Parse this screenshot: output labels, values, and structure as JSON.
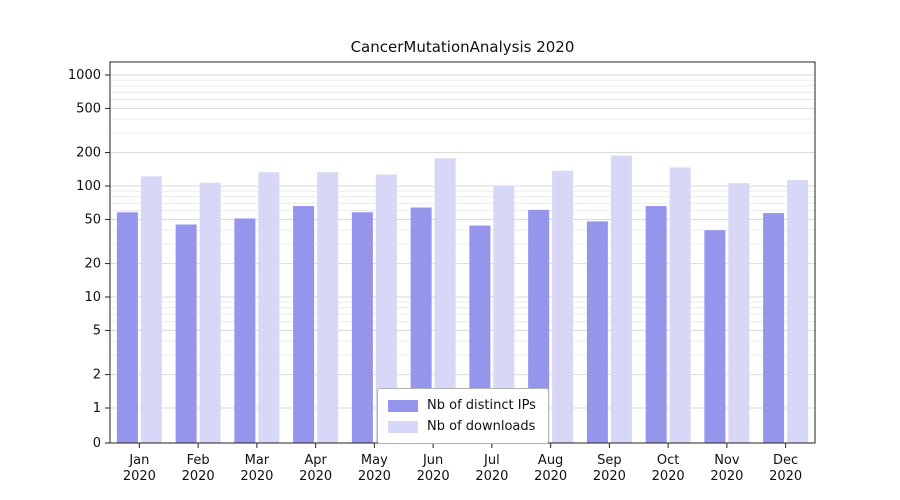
{
  "chart_data": {
    "type": "bar",
    "title": "CancerMutationAnalysis 2020",
    "scale": "symlog",
    "grid": true,
    "legend_position": "lower center",
    "ylim": [
      0,
      1300
    ],
    "yticks": [
      0,
      1,
      2,
      5,
      10,
      20,
      50,
      100,
      200,
      500,
      1000
    ],
    "categories": [
      "Jan\n2020",
      "Feb\n2020",
      "Mar\n2020",
      "Apr\n2020",
      "May\n2020",
      "Jun\n2020",
      "Jul\n2020",
      "Aug\n2020",
      "Sep\n2020",
      "Oct\n2020",
      "Nov\n2020",
      "Dec\n2020"
    ],
    "series": [
      {
        "name": "Nb of distinct IPs",
        "color": "#9595ec",
        "values": [
          58,
          45,
          51,
          66,
          58,
          64,
          44,
          61,
          48,
          66,
          40,
          57
        ]
      },
      {
        "name": "Nb of downloads",
        "color": "#d7d7f7",
        "values": [
          122,
          107,
          133,
          133,
          127,
          178,
          101,
          137,
          188,
          147,
          106,
          113
        ]
      }
    ]
  },
  "colors": {
    "grid_major": "#d9d9d9",
    "grid_minor": "#ececec",
    "spine": "#222222",
    "tick_text": "#111111"
  }
}
